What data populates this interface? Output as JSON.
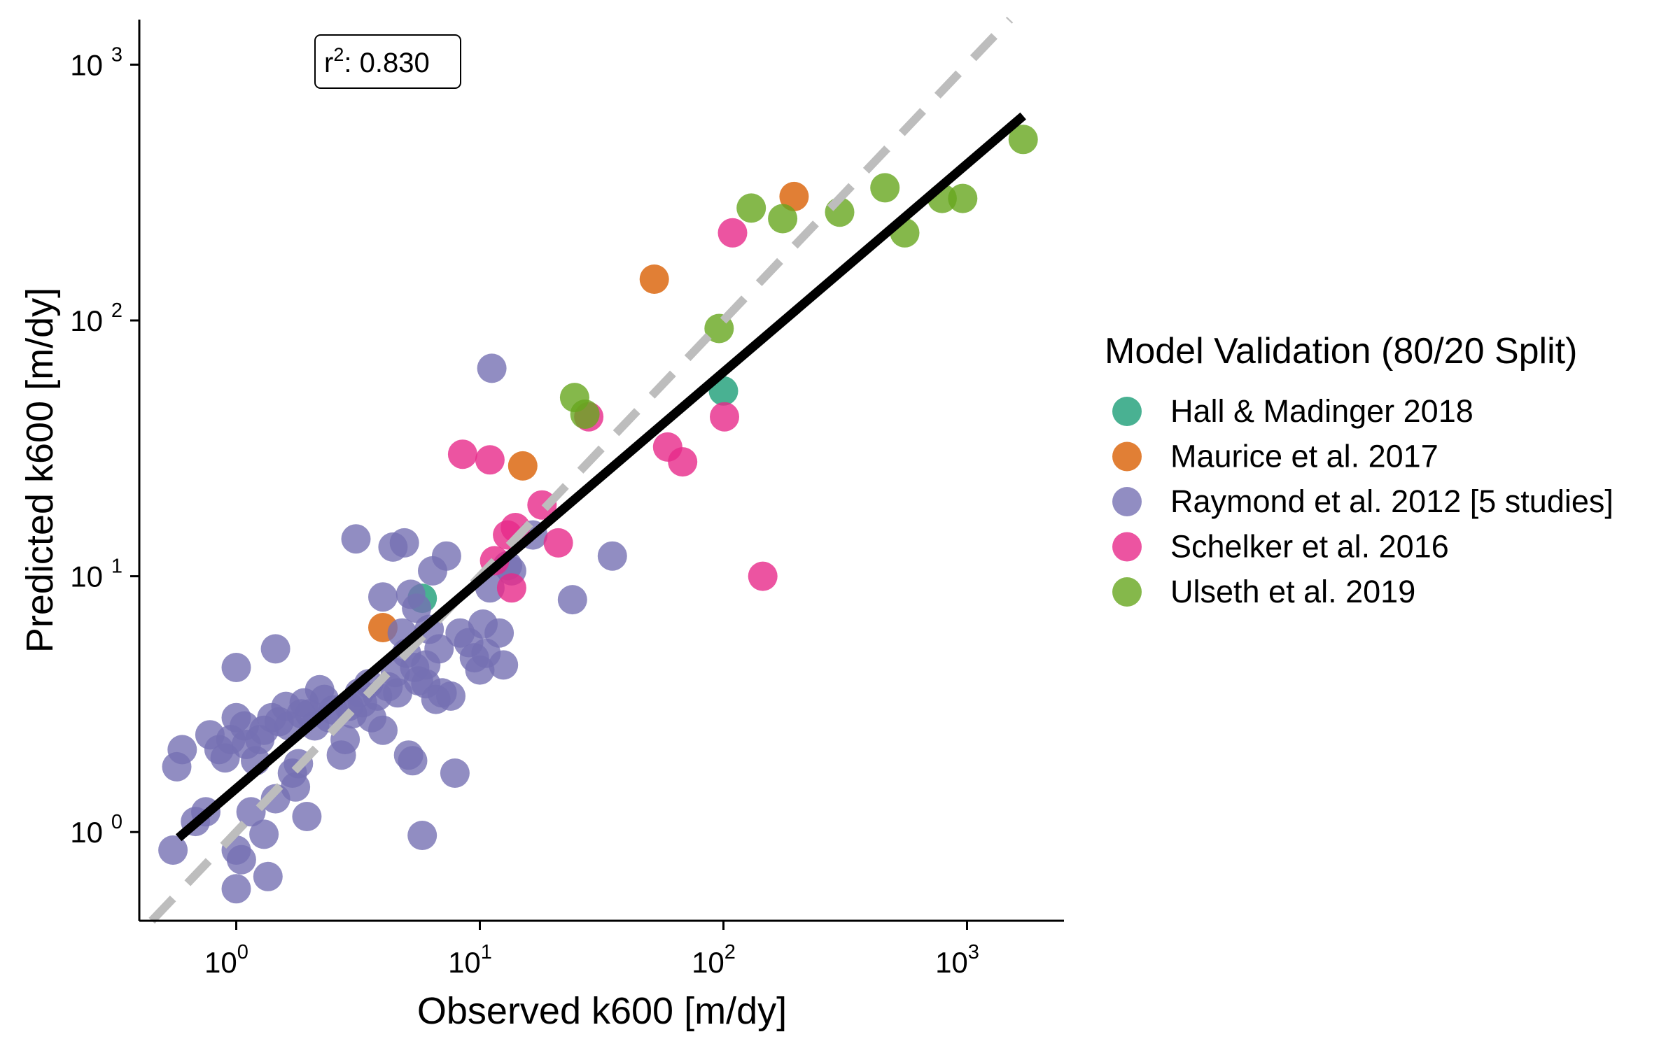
{
  "chart_data": {
    "type": "scatter",
    "xlabel": "Observed k600 [m/dy]",
    "ylabel": "Predicted k600 [m/dy]",
    "x_scale": "log10",
    "y_scale": "log10",
    "xlim": [
      0.4,
      2500
    ],
    "ylim": [
      0.45,
      1500
    ],
    "x_ticks": [
      1,
      10,
      100,
      1000
    ],
    "y_ticks": [
      1,
      10,
      100,
      1000
    ],
    "tick_base": "10",
    "x_tick_exponents": [
      "0",
      "1",
      "2",
      "3"
    ],
    "y_tick_exponents": [
      "0",
      "1",
      "2",
      "3"
    ],
    "grid": false,
    "annotation": {
      "label": "r",
      "superscript": "2",
      "value": ": 0.830"
    },
    "legend": {
      "title": "Model Validation (80/20 Split)",
      "placement": "right"
    },
    "reference_line": {
      "type": "1:1",
      "style": "dashed",
      "color": "#bdbdbd"
    },
    "fit_line": {
      "color": "#000000",
      "x": [
        0.58,
        1700
      ],
      "y": [
        0.95,
        630
      ]
    },
    "series": [
      {
        "name": "Hall & Madinger 2018",
        "color": "#1b9e77",
        "points": [
          [
            5.8,
            8.2
          ],
          [
            100,
            53
          ]
        ]
      },
      {
        "name": "Maurice et al. 2017",
        "color": "#d95f02",
        "points": [
          [
            4,
            6.3
          ],
          [
            15,
            27
          ],
          [
            52,
            145
          ],
          [
            195,
            305
          ]
        ]
      },
      {
        "name": "Raymond et al. 2012 [5 studies]",
        "color": "#7570b3",
        "points": [
          [
            0.55,
            0.85
          ],
          [
            0.57,
            1.8
          ],
          [
            0.6,
            2.1
          ],
          [
            0.68,
            1.1
          ],
          [
            0.75,
            1.2
          ],
          [
            0.78,
            2.4
          ],
          [
            0.85,
            2.1
          ],
          [
            0.9,
            1.95
          ],
          [
            0.95,
            2.3
          ],
          [
            1.0,
            4.4
          ],
          [
            1.0,
            2.8
          ],
          [
            1.0,
            0.85
          ],
          [
            1.0,
            0.6
          ],
          [
            1.05,
            0.78
          ],
          [
            1.08,
            2.6
          ],
          [
            1.1,
            2.2
          ],
          [
            1.15,
            1.2
          ],
          [
            1.2,
            1.9
          ],
          [
            1.25,
            2.3
          ],
          [
            1.3,
            2.5
          ],
          [
            1.3,
            0.98
          ],
          [
            1.35,
            0.67
          ],
          [
            1.4,
            2.8
          ],
          [
            1.45,
            5.2
          ],
          [
            1.45,
            1.35
          ],
          [
            1.5,
            2.7
          ],
          [
            1.6,
            3.1
          ],
          [
            1.65,
            2.6
          ],
          [
            1.7,
            1.7
          ],
          [
            1.75,
            1.5
          ],
          [
            1.8,
            1.85
          ],
          [
            1.85,
            2.9
          ],
          [
            1.9,
            3.2
          ],
          [
            1.95,
            1.15
          ],
          [
            2.0,
            2.9
          ],
          [
            2.1,
            2.6
          ],
          [
            2.2,
            3.6
          ],
          [
            2.3,
            3.3
          ],
          [
            2.4,
            2.8
          ],
          [
            2.5,
            3.0
          ],
          [
            2.7,
            2.0
          ],
          [
            2.8,
            2.3
          ],
          [
            2.9,
            3.1
          ],
          [
            3.0,
            2.9
          ],
          [
            3.1,
            14
          ],
          [
            3.2,
            3.5
          ],
          [
            3.3,
            3.2
          ],
          [
            3.5,
            3.8
          ],
          [
            3.6,
            2.8
          ],
          [
            3.8,
            3.4
          ],
          [
            4.0,
            2.5
          ],
          [
            4.0,
            8.3
          ],
          [
            4.2,
            3.7
          ],
          [
            4.4,
            13
          ],
          [
            4.5,
            4.2
          ],
          [
            4.6,
            3.5
          ],
          [
            4.8,
            6.0
          ],
          [
            4.9,
            13.5
          ],
          [
            5.0,
            5.0
          ],
          [
            5.1,
            2.0
          ],
          [
            5.2,
            8.5
          ],
          [
            5.3,
            1.9
          ],
          [
            5.4,
            4.4
          ],
          [
            5.5,
            7.5
          ],
          [
            5.6,
            3.9
          ],
          [
            5.8,
            0.97
          ],
          [
            6.0,
            4.5
          ],
          [
            6.0,
            3.8
          ],
          [
            6.2,
            6.2
          ],
          [
            6.4,
            10.5
          ],
          [
            6.6,
            3.3
          ],
          [
            6.8,
            5.2
          ],
          [
            7.0,
            3.5
          ],
          [
            7.3,
            12
          ],
          [
            7.6,
            3.4
          ],
          [
            7.9,
            1.7
          ],
          [
            8.3,
            6.0
          ],
          [
            9.0,
            5.5
          ],
          [
            9.5,
            4.8
          ],
          [
            10.0,
            4.3
          ],
          [
            10.3,
            6.5
          ],
          [
            10.6,
            5.0
          ],
          [
            11.0,
            9.0
          ],
          [
            11.2,
            65
          ],
          [
            12.0,
            6.0
          ],
          [
            12.5,
            4.5
          ],
          [
            13.0,
            11
          ],
          [
            13.5,
            10.5
          ],
          [
            16.5,
            14.5
          ],
          [
            24,
            8.1
          ],
          [
            35,
            12
          ]
        ]
      },
      {
        "name": "Schelker et al. 2016",
        "color": "#e7298a",
        "points": [
          [
            8.5,
            30
          ],
          [
            11,
            28.5
          ],
          [
            11.5,
            11.5
          ],
          [
            13,
            14.5
          ],
          [
            13.5,
            9
          ],
          [
            14,
            15.5
          ],
          [
            18,
            19
          ],
          [
            21,
            13.5
          ],
          [
            28,
            42
          ],
          [
            59,
            32
          ],
          [
            68,
            28
          ],
          [
            101,
            42
          ],
          [
            109,
            220
          ],
          [
            145,
            10
          ]
        ]
      },
      {
        "name": "Ulseth et al. 2019",
        "color": "#66a61e",
        "points": [
          [
            24.5,
            50
          ],
          [
            27,
            43
          ],
          [
            96,
            93
          ],
          [
            130,
            275
          ],
          [
            175,
            250
          ],
          [
            300,
            265
          ],
          [
            460,
            330
          ],
          [
            555,
            220
          ],
          [
            790,
            300
          ],
          [
            960,
            300
          ],
          [
            1700,
            510
          ]
        ]
      }
    ]
  }
}
